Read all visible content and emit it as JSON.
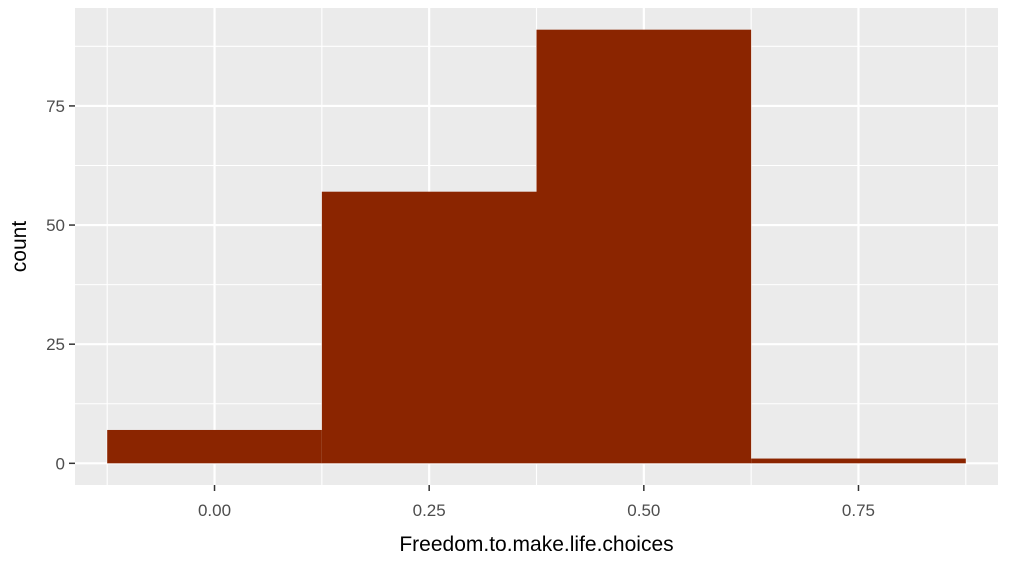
{
  "chart_data": {
    "type": "bar",
    "subtype": "histogram",
    "bins": [
      {
        "x_start": -0.125,
        "x_end": 0.125,
        "count": 7
      },
      {
        "x_start": 0.125,
        "x_end": 0.375,
        "count": 57
      },
      {
        "x_start": 0.375,
        "x_end": 0.625,
        "count": 91
      },
      {
        "x_start": 0.625,
        "x_end": 0.875,
        "count": 1
      }
    ],
    "xlabel": "Freedom.to.make.life.choices",
    "ylabel": "count",
    "xlim": [
      -0.1625,
      0.9125
    ],
    "ylim": [
      -4.55,
      95.55
    ],
    "x_ticks": [
      {
        "value": 0.0,
        "label": "0.00"
      },
      {
        "value": 0.25,
        "label": "0.25"
      },
      {
        "value": 0.5,
        "label": "0.50"
      },
      {
        "value": 0.75,
        "label": "0.75"
      }
    ],
    "y_ticks": [
      {
        "value": 0,
        "label": "0"
      },
      {
        "value": 25,
        "label": "25"
      },
      {
        "value": 50,
        "label": "50"
      },
      {
        "value": 75,
        "label": "75"
      }
    ],
    "x_minor_ticks": [
      -0.125,
      0.125,
      0.375,
      0.625,
      0.875
    ],
    "y_minor_ticks": [
      12.5,
      37.5,
      62.5,
      87.5
    ],
    "grid": true,
    "colors": {
      "bar_fill": "#8b2500",
      "panel_background": "#ebebeb",
      "grid": "#ffffff",
      "tick_label": "#4d4d4d",
      "axis_title": "#000000"
    }
  }
}
